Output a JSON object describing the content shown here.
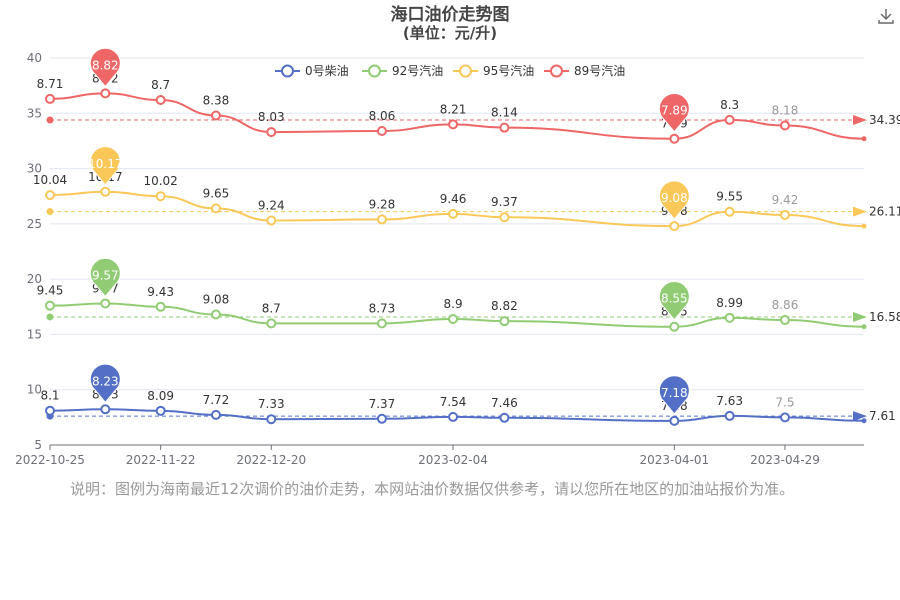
{
  "toolbar": {
    "download_icon": "download-icon"
  },
  "note": "说明：图例为海南最近12次调价的油价走势，本网站油价数据仅供参考，请以您所在地区的加油站报价为准。",
  "chart_data": {
    "type": "line",
    "title": "海口油价走势图",
    "subtitle": "(单位：元/升)",
    "legend_position": "top",
    "grid": true,
    "xlabel": "",
    "ylabel": "",
    "ylim": [
      5,
      40
    ],
    "yticks": [
      5,
      10,
      15,
      20,
      25,
      30,
      35,
      40
    ],
    "xlim": [
      "2022-10-25",
      "2023-05-19"
    ],
    "xticks": [
      "2022-10-25",
      "2022-11-22",
      "2022-12-20",
      "2023-02-04",
      "2023-04-01",
      "2023-04-29"
    ],
    "x": [
      "2022-10-25",
      "2022-11-08",
      "2022-11-22",
      "2022-12-06",
      "2022-12-20",
      "2023-01-17",
      "2023-02-04",
      "2023-02-17",
      "2023-04-01",
      "2023-04-15",
      "2023-04-29"
    ],
    "series": [
      {
        "name": "0号柴油",
        "color": "#5470c6",
        "labels": [
          8.1,
          8.23,
          8.09,
          7.72,
          7.33,
          7.37,
          7.54,
          7.46,
          7.18,
          7.63,
          7.5
        ],
        "values": [
          8.1,
          8.23,
          8.09,
          7.72,
          7.33,
          7.37,
          7.54,
          7.46,
          7.18,
          7.63,
          7.5
        ],
        "end_value": 7.19,
        "max_label": "8.23",
        "min_label": "7.18",
        "average": 7.61,
        "average_label": "7.61"
      },
      {
        "name": "92号汽油",
        "color": "#91cc75",
        "labels": [
          9.45,
          9.57,
          9.43,
          9.08,
          8.7,
          8.73,
          8.9,
          8.82,
          8.55,
          8.99,
          8.86
        ],
        "values": [
          17.6,
          17.8,
          17.5,
          16.8,
          16.0,
          16.0,
          16.4,
          16.2,
          15.7,
          16.5,
          16.3
        ],
        "end_value": 15.7,
        "max_label": "9.57",
        "min_label": "8.55",
        "average": 16.58,
        "average_label": "16.58"
      },
      {
        "name": "95号汽油",
        "color": "#fac858",
        "labels": [
          10.04,
          10.17,
          10.02,
          9.65,
          9.24,
          9.28,
          9.46,
          9.37,
          9.08,
          9.55,
          9.42
        ],
        "values": [
          27.6,
          27.9,
          27.5,
          26.4,
          25.3,
          25.4,
          25.9,
          25.6,
          24.8,
          26.1,
          25.8
        ],
        "end_value": 24.8,
        "max_label": "10.17",
        "min_label": "9.08",
        "average": 26.11,
        "average_label": "26.11"
      },
      {
        "name": "89号汽油",
        "color": "#ee6666",
        "labels": [
          8.71,
          8.82,
          8.7,
          8.38,
          8.03,
          8.06,
          8.21,
          8.14,
          7.89,
          8.3,
          8.18
        ],
        "values": [
          36.3,
          36.8,
          36.2,
          34.8,
          33.3,
          33.4,
          34.0,
          33.7,
          32.7,
          34.4,
          33.9
        ],
        "end_value": 32.7,
        "max_label": "8.82",
        "min_label": "7.89",
        "average": 34.39,
        "average_label": "34.39"
      }
    ]
  }
}
